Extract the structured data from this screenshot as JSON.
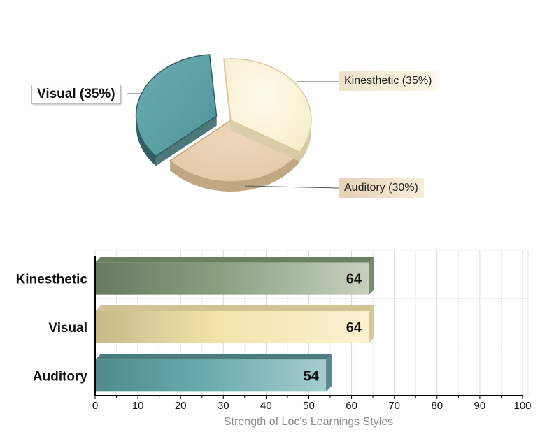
{
  "chart_data": [
    {
      "type": "pie",
      "slices": [
        {
          "label": "Visual (35%)",
          "name": "Visual",
          "value": 35,
          "color": "#5fa3a7",
          "side": "#2f5f63"
        },
        {
          "label": "Kinesthetic (35%)",
          "name": "Kinesthetic",
          "value": 35,
          "color": "#fdf6df",
          "side": "#d8cba4"
        },
        {
          "label": "Auditory (30%)",
          "name": "Auditory",
          "value": 30,
          "color": "#e9d3b5",
          "side": "#bfa882"
        }
      ],
      "exploded": "Visual",
      "style": "3d"
    },
    {
      "type": "bar",
      "orientation": "horizontal",
      "categories": [
        "Kinesthetic",
        "Visual",
        "Auditory"
      ],
      "values": [
        64,
        64,
        54
      ],
      "colors": [
        {
          "start": "#68795e",
          "end": "#c7d1c1",
          "top": "#6c7f60"
        },
        {
          "start": "#c8b887",
          "end": "#fcf2d1",
          "top": "#d2c294"
        },
        {
          "start": "#4f8a8d",
          "end": "#a6cccd",
          "top": "#4a7c80"
        }
      ],
      "xlabel": "Strength of Loc's Learnings Styles",
      "xlim": [
        0,
        100
      ],
      "xticks": [
        0,
        10,
        20,
        30,
        40,
        50,
        60,
        70,
        80,
        90,
        100
      ],
      "data_labels": [
        "64",
        "64",
        "54"
      ],
      "grid": true
    }
  ]
}
